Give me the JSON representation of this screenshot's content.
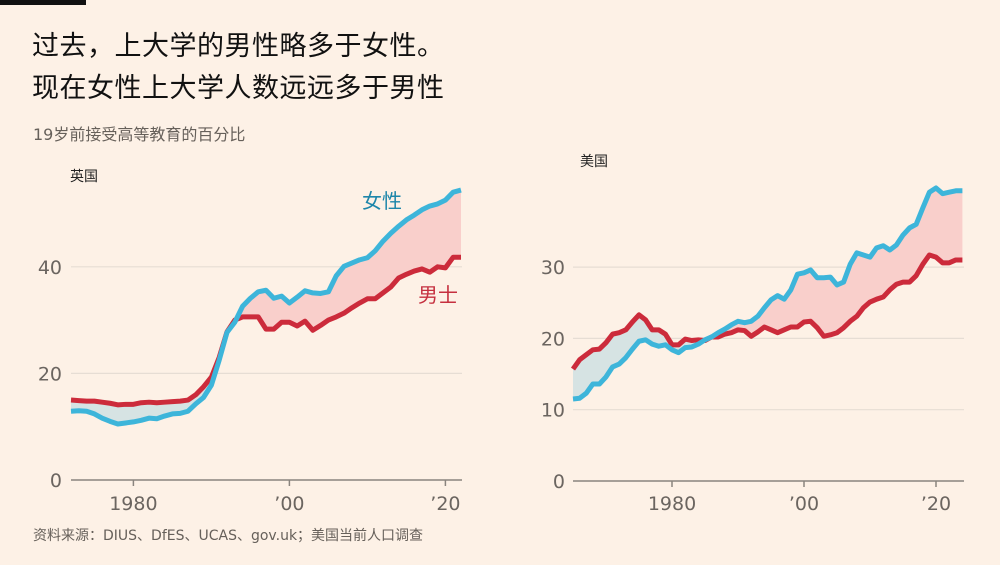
{
  "header": {
    "title_line1": "过去，上大学的男性略多于女性。",
    "title_line2": "现在女性上大学人数远远多于男性",
    "subtitle": "19岁前接受高等教育的百分比"
  },
  "source": "资料来源：DIUS、DfES、UCAS、gov.uk；美国当前人口调查",
  "colors": {
    "background": "#FDF1E6",
    "women": "#3DB5DA",
    "men": "#CC2B3B",
    "women_gap_fill": "#F9CFCB",
    "men_gap_fill": "#D6E3E3",
    "gridline": "#E6DDD4",
    "axis": "#8A847E"
  },
  "chart_data": [
    {
      "type": "line",
      "title": "英国",
      "xlabel": "",
      "ylabel": "19岁前接受高等教育的百分比",
      "xlim": [
        1972,
        2022
      ],
      "ylim": [
        0,
        55
      ],
      "yticks": [
        0,
        20,
        40
      ],
      "xticks": [
        1980,
        2000,
        2020
      ],
      "xtick_labels": [
        "1980",
        "’00",
        "’20"
      ],
      "grid": true,
      "legend_labels": {
        "women": "女性",
        "men": "男士"
      },
      "x": [
        1972,
        1973,
        1974,
        1975,
        1976,
        1977,
        1978,
        1979,
        1980,
        1981,
        1982,
        1983,
        1984,
        1985,
        1986,
        1987,
        1988,
        1989,
        1990,
        1991,
        1992,
        1993,
        1994,
        1995,
        1996,
        1997,
        1998,
        1999,
        2000,
        2001,
        2002,
        2003,
        2004,
        2005,
        2006,
        2007,
        2008,
        2009,
        2010,
        2011,
        2012,
        2013,
        2014,
        2015,
        2016,
        2017,
        2018,
        2019,
        2020,
        2021,
        2022
      ],
      "series": [
        {
          "name": "女性",
          "key": "women",
          "values": [
            12.9,
            13.0,
            12.9,
            12.4,
            11.6,
            11.0,
            10.5,
            10.7,
            10.9,
            11.2,
            11.6,
            11.5,
            12.0,
            12.4,
            12.5,
            12.9,
            14.3,
            15.5,
            17.8,
            22.5,
            27.7,
            29.6,
            32.6,
            34.1,
            35.3,
            35.6,
            34.1,
            34.5,
            33.2,
            34.3,
            35.5,
            35.1,
            35.0,
            35.3,
            38.3,
            40.1,
            40.7,
            41.3,
            41.7,
            43.0,
            44.8,
            46.3,
            47.6,
            48.8,
            49.7,
            50.7,
            51.4,
            51.8,
            52.5,
            54.0,
            54.4
          ]
        },
        {
          "name": "男士",
          "key": "men",
          "values": [
            15.0,
            14.9,
            14.8,
            14.8,
            14.6,
            14.4,
            14.1,
            14.2,
            14.2,
            14.5,
            14.6,
            14.5,
            14.6,
            14.7,
            14.8,
            15.0,
            16.0,
            17.5,
            19.3,
            23.0,
            27.8,
            30.0,
            30.6,
            30.6,
            30.6,
            28.3,
            28.3,
            29.6,
            29.6,
            28.9,
            29.8,
            28.1,
            29.0,
            30.0,
            30.6,
            31.3,
            32.3,
            33.2,
            34.0,
            34.0,
            35.1,
            36.2,
            37.9,
            38.6,
            39.2,
            39.6,
            39.0,
            40.0,
            39.8,
            41.8,
            41.8
          ]
        }
      ]
    },
    {
      "type": "line",
      "title": "美国",
      "xlabel": "",
      "ylabel": "19岁前接受高等教育的百分比",
      "xlim": [
        1965,
        2024
      ],
      "ylim": [
        0,
        41
      ],
      "yticks": [
        0,
        10,
        20,
        30
      ],
      "xticks": [
        1980,
        2000,
        2020
      ],
      "xtick_labels": [
        "1980",
        "’00",
        "’20"
      ],
      "grid": true,
      "x": [
        1965,
        1966,
        1967,
        1968,
        1969,
        1970,
        1971,
        1972,
        1973,
        1974,
        1975,
        1976,
        1977,
        1978,
        1979,
        1980,
        1981,
        1982,
        1983,
        1984,
        1985,
        1986,
        1987,
        1988,
        1989,
        1990,
        1991,
        1992,
        1993,
        1994,
        1995,
        1996,
        1997,
        1998,
        1999,
        2000,
        2001,
        2002,
        2003,
        2004,
        2005,
        2006,
        2007,
        2008,
        2009,
        2010,
        2011,
        2012,
        2013,
        2014,
        2015,
        2016,
        2017,
        2018,
        2019,
        2020,
        2021,
        2022,
        2023,
        2024
      ],
      "series": [
        {
          "name": "女性",
          "key": "women",
          "values": [
            11.5,
            11.6,
            12.3,
            13.6,
            13.6,
            14.6,
            16.0,
            16.4,
            17.3,
            18.5,
            19.6,
            19.8,
            19.2,
            18.9,
            19.1,
            18.4,
            18.0,
            18.7,
            18.8,
            19.2,
            19.8,
            20.2,
            20.8,
            21.3,
            21.9,
            22.4,
            22.2,
            22.4,
            23.1,
            24.3,
            25.4,
            26.0,
            25.5,
            26.8,
            29.0,
            29.2,
            29.6,
            28.5,
            28.5,
            28.6,
            27.5,
            27.9,
            30.4,
            32.0,
            31.7,
            31.4,
            32.7,
            33.0,
            32.4,
            33.1,
            34.5,
            35.5,
            36.0,
            38.3,
            40.5,
            41.1,
            40.3,
            40.5,
            40.7,
            40.7
          ]
        },
        {
          "name": "男士",
          "key": "men",
          "values": [
            15.7,
            17.0,
            17.7,
            18.4,
            18.5,
            19.4,
            20.6,
            20.8,
            21.2,
            22.3,
            23.3,
            22.6,
            21.2,
            21.2,
            20.6,
            19.1,
            19.1,
            19.9,
            19.7,
            19.8,
            19.7,
            20.2,
            20.2,
            20.6,
            20.8,
            21.2,
            21.1,
            20.3,
            20.9,
            21.6,
            21.2,
            20.8,
            21.2,
            21.6,
            21.6,
            22.3,
            22.4,
            21.5,
            20.3,
            20.5,
            20.8,
            21.5,
            22.4,
            23.1,
            24.3,
            25.1,
            25.5,
            25.8,
            26.8,
            27.6,
            27.9,
            27.9,
            28.8,
            30.4,
            31.7,
            31.4,
            30.6,
            30.6,
            31.0,
            31.0
          ]
        }
      ]
    }
  ]
}
